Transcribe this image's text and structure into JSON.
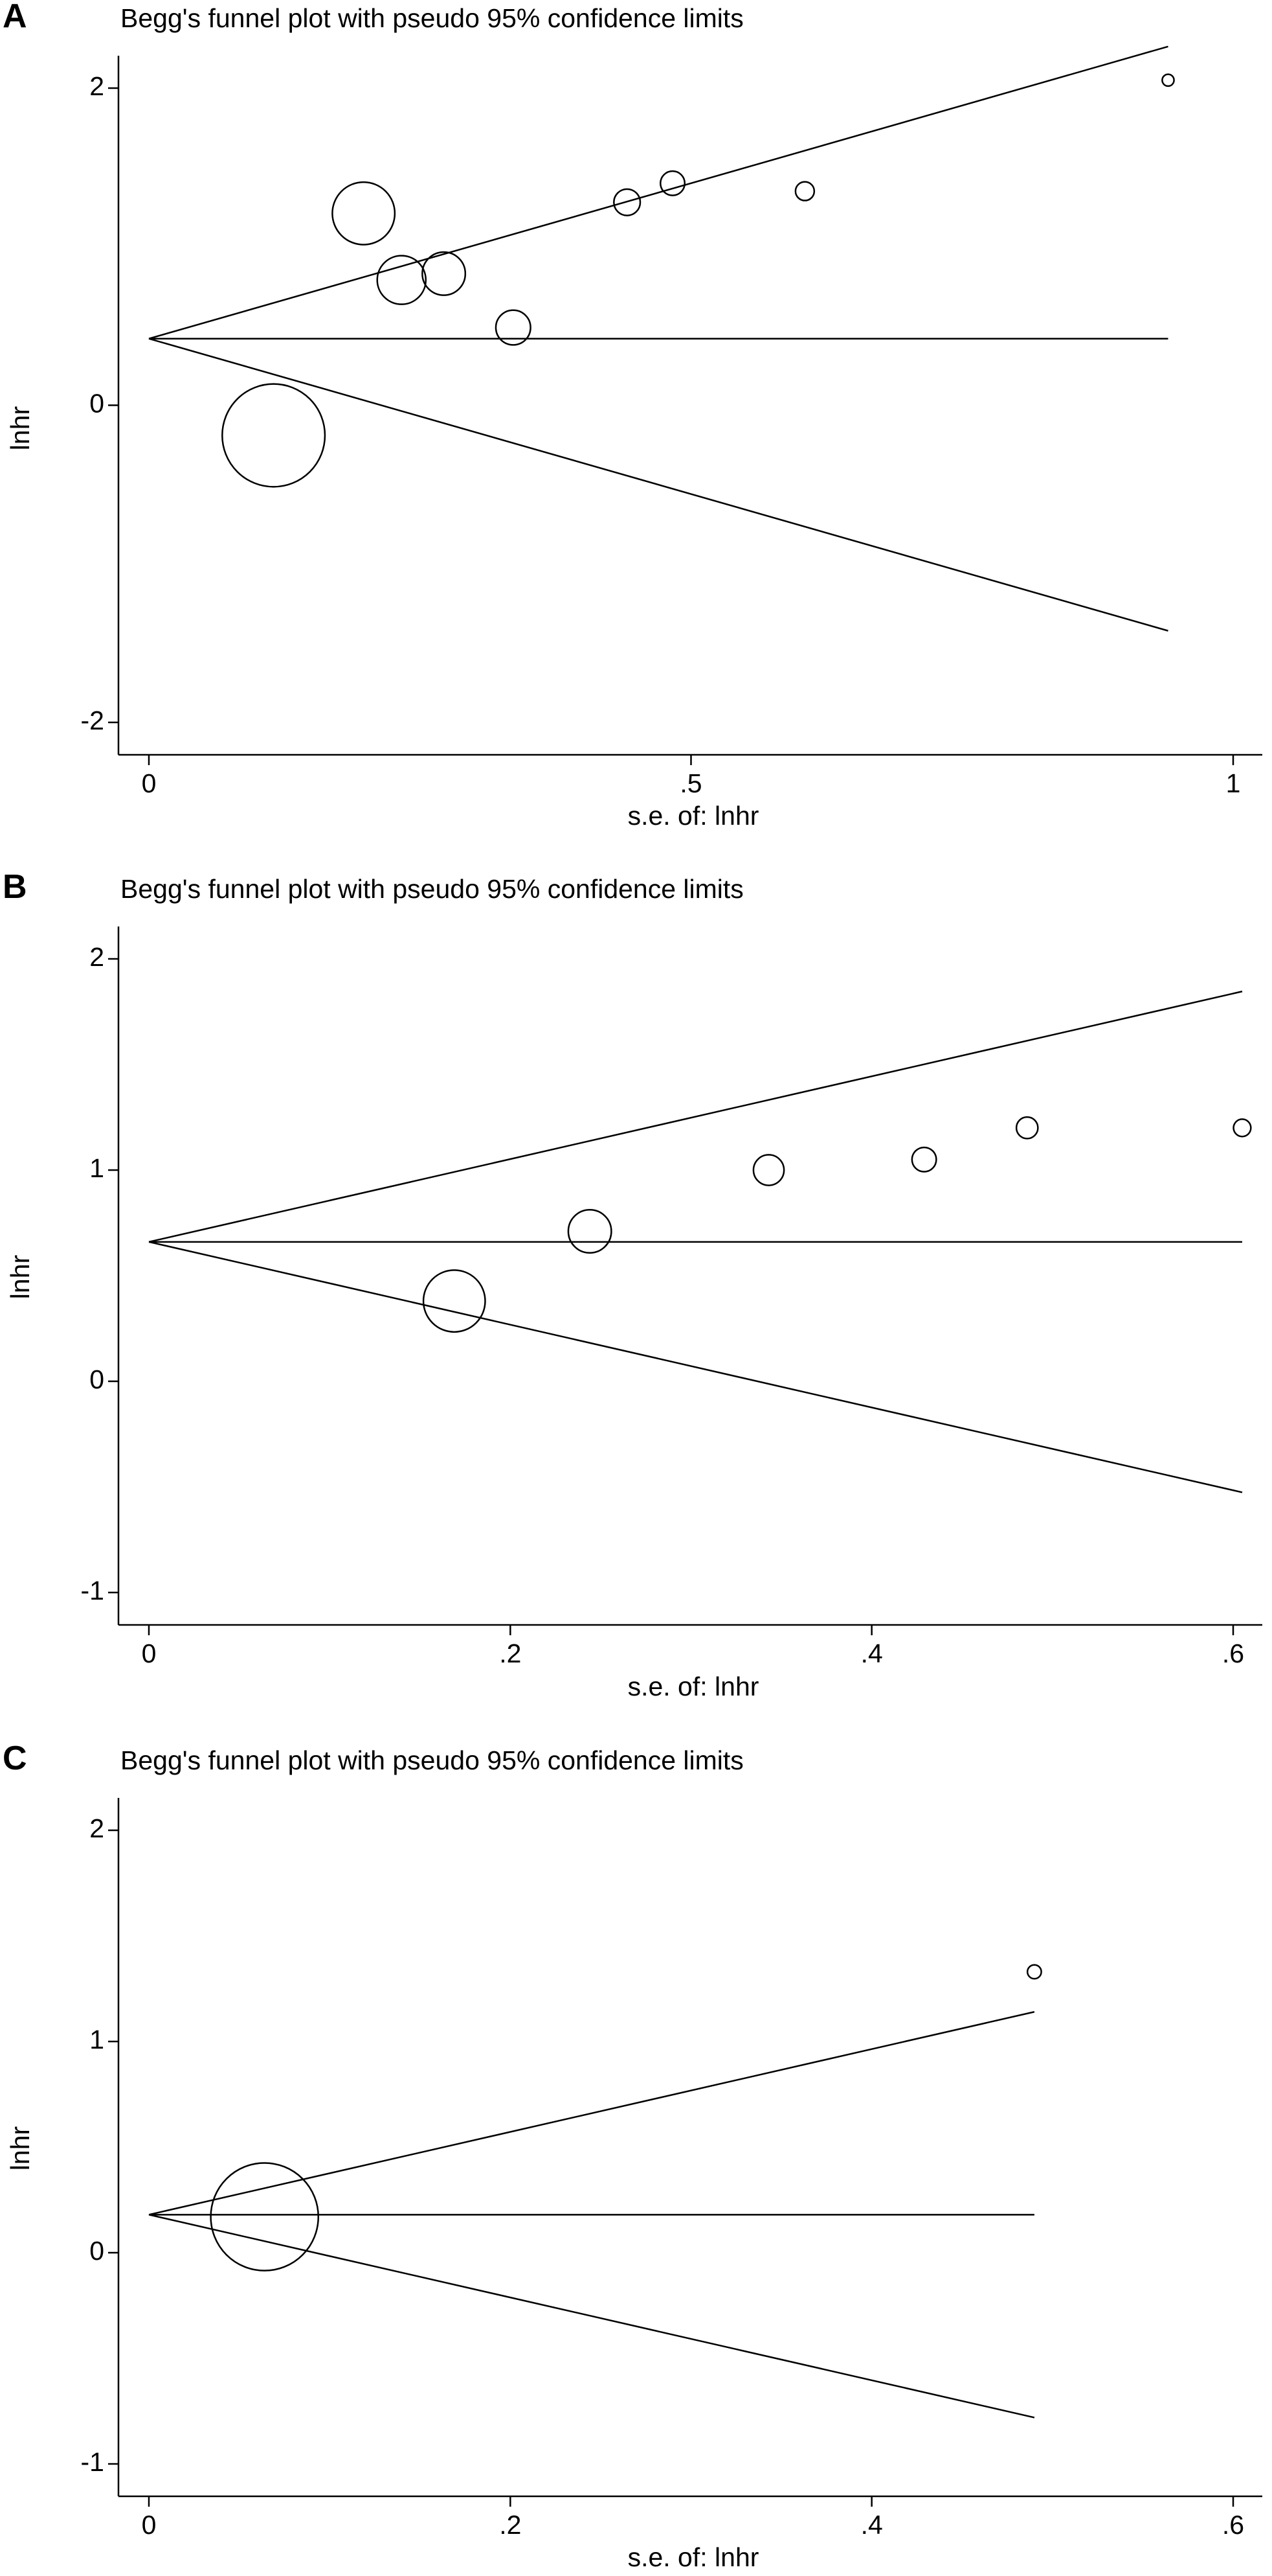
{
  "chart_data": [
    {
      "panel": "A",
      "type": "scatter",
      "title": "Begg's funnel plot with pseudo 95% confidence limits",
      "xlabel": "s.e. of: lnhr",
      "ylabel": "lnhr",
      "xlim": [
        0,
        1
      ],
      "ylim": [
        -2,
        2
      ],
      "xticks": [
        0,
        0.5,
        1
      ],
      "xtick_labels": [
        "0",
        ".5",
        "1"
      ],
      "yticks": [
        -2,
        0,
        2
      ],
      "ytick_labels": [
        "-2",
        "0",
        "2"
      ],
      "pooled_estimate": 0.42,
      "max_se": 0.94,
      "points": [
        {
          "se": 0.115,
          "lnhr": -0.19,
          "size": 0.148
        },
        {
          "se": 0.198,
          "lnhr": 1.21,
          "size": 0.09
        },
        {
          "se": 0.233,
          "lnhr": 0.79,
          "size": 0.07
        },
        {
          "se": 0.272,
          "lnhr": 0.83,
          "size": 0.062
        },
        {
          "se": 0.336,
          "lnhr": 0.49,
          "size": 0.05
        },
        {
          "se": 0.441,
          "lnhr": 1.28,
          "size": 0.038
        },
        {
          "se": 0.483,
          "lnhr": 1.4,
          "size": 0.035
        },
        {
          "se": 0.605,
          "lnhr": 1.35,
          "size": 0.027
        },
        {
          "se": 0.94,
          "lnhr": 2.05,
          "size": 0.017
        }
      ]
    },
    {
      "panel": "B",
      "type": "scatter",
      "title": "Begg's funnel plot with pseudo 95% confidence limits",
      "xlabel": "s.e. of: lnhr",
      "ylabel": "lnhr",
      "xlim": [
        0,
        0.6
      ],
      "ylim": [
        -1,
        2
      ],
      "xticks": [
        0,
        0.2,
        0.4,
        0.6
      ],
      "xtick_labels": [
        "0",
        ".2",
        ".4",
        ".6"
      ],
      "yticks": [
        -1,
        0,
        1,
        2
      ],
      "ytick_labels": [
        "-1",
        "0",
        "1",
        "2"
      ],
      "pooled_estimate": 0.66,
      "max_se": 0.605,
      "points": [
        {
          "se": 0.169,
          "lnhr": 0.38,
          "size": 0.089
        },
        {
          "se": 0.244,
          "lnhr": 0.71,
          "size": 0.062
        },
        {
          "se": 0.343,
          "lnhr": 1.0,
          "size": 0.044
        },
        {
          "se": 0.429,
          "lnhr": 1.05,
          "size": 0.035
        },
        {
          "se": 0.486,
          "lnhr": 1.2,
          "size": 0.031
        },
        {
          "se": 0.605,
          "lnhr": 1.2,
          "size": 0.025
        }
      ]
    },
    {
      "panel": "C",
      "type": "scatter",
      "title": "Begg's funnel plot with pseudo 95% confidence limits",
      "xlabel": "s.e. of: lnhr",
      "ylabel": "lnhr",
      "xlim": [
        0,
        0.6
      ],
      "ylim": [
        -1,
        2
      ],
      "xticks": [
        0,
        0.2,
        0.4,
        0.6
      ],
      "xtick_labels": [
        "0",
        ".2",
        ".4",
        ".6"
      ],
      "yticks": [
        -1,
        0,
        1,
        2
      ],
      "ytick_labels": [
        "-1",
        "0",
        "1",
        "2"
      ],
      "pooled_estimate": 0.18,
      "max_se": 0.49,
      "points": [
        {
          "se": 0.064,
          "lnhr": 0.17,
          "size": 0.155
        },
        {
          "se": 0.49,
          "lnhr": 1.33,
          "size": 0.02
        }
      ]
    }
  ]
}
